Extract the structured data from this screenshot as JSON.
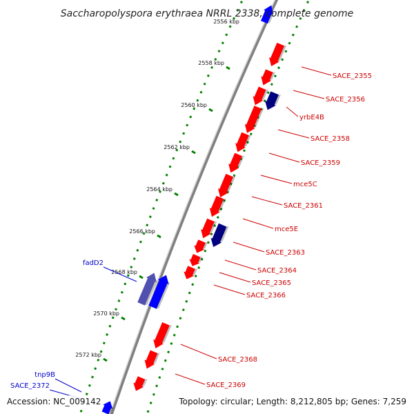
{
  "title": "Saccharopolyspora erythraea NRRL 2338, complete genome",
  "footer": {
    "accession": "Accession: NC_009142",
    "topology": "Topology: circular; Length: 8,212,805 bp; Genes: 7,259"
  },
  "colors": {
    "forward_gene": "#ff0000",
    "highlight_forward": "#000080",
    "reverse_gene": "#0000ff",
    "highlight_reverse": "#5050b0",
    "backbone": "#808080",
    "feature_dots": "#008000",
    "forward_label": "#cc0000",
    "reverse_label": "#0000cc"
  },
  "ticks": [
    "2558 kbp",
    "2560 kbp",
    "2562 kbp",
    "2564 kbp",
    "2566 kbp",
    "2568 kbp",
    "2570 kbp",
    "2572 kbp"
  ],
  "top_tick_partial": "2556 kbp",
  "forward_labels": [
    "SACE_2355",
    "SACE_2356",
    "yrbE4B",
    "SACE_2358",
    "SACE_2359",
    "mce5C",
    "SACE_2361",
    "mce5E",
    "SACE_2363",
    "SACE_2364",
    "SACE_2365",
    "SACE_2366",
    "SACE_2368",
    "SACE_2369"
  ],
  "reverse_labels": [
    "fadD2",
    "tnp9B",
    "SACE_2372"
  ]
}
